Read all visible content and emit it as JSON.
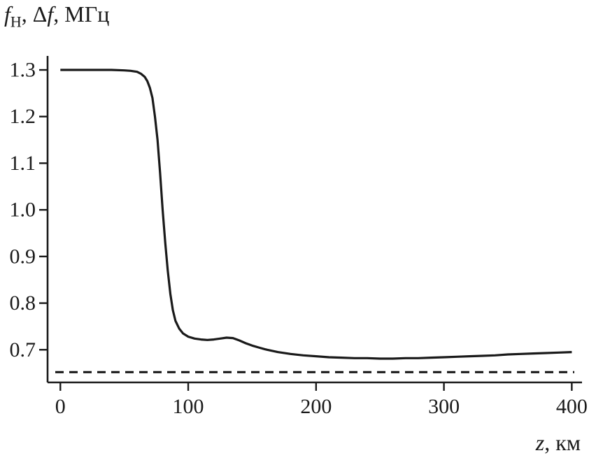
{
  "title": {
    "part1_italic": "f",
    "part2_sub": "Н",
    "part3": ", Δ",
    "part4_italic": "f",
    "part5": ", МГц"
  },
  "xlabel": {
    "part1_italic": "z",
    "part2": ", км"
  },
  "colors": {
    "line": "#1a1a1a",
    "background": "#ffffff"
  },
  "chart_data": {
    "type": "line",
    "title": "fН, Δf, МГц vs z, км",
    "xlabel": "z, км",
    "ylabel": "fН, Δf, МГц",
    "xlim": [
      -10,
      408
    ],
    "ylim": [
      0.63,
      1.33
    ],
    "x_ticks": [
      0,
      100,
      200,
      300,
      400
    ],
    "y_ticks": [
      0.7,
      0.8,
      0.9,
      1.0,
      1.1,
      1.2,
      1.3
    ],
    "grid": false,
    "legend": "none",
    "series": [
      {
        "name": "f-solid-curve",
        "style": "solid",
        "color": "#1a1a1a",
        "points": [
          [
            0,
            1.3
          ],
          [
            10,
            1.3
          ],
          [
            20,
            1.3
          ],
          [
            30,
            1.3
          ],
          [
            40,
            1.3
          ],
          [
            50,
            1.299
          ],
          [
            55,
            1.298
          ],
          [
            60,
            1.296
          ],
          [
            63,
            1.292
          ],
          [
            66,
            1.285
          ],
          [
            68,
            1.276
          ],
          [
            70,
            1.262
          ],
          [
            72,
            1.24
          ],
          [
            74,
            1.2
          ],
          [
            76,
            1.15
          ],
          [
            78,
            1.08
          ],
          [
            80,
            1.0
          ],
          [
            82,
            0.93
          ],
          [
            84,
            0.87
          ],
          [
            86,
            0.82
          ],
          [
            88,
            0.785
          ],
          [
            90,
            0.762
          ],
          [
            93,
            0.745
          ],
          [
            96,
            0.735
          ],
          [
            100,
            0.728
          ],
          [
            105,
            0.724
          ],
          [
            110,
            0.722
          ],
          [
            115,
            0.721
          ],
          [
            120,
            0.722
          ],
          [
            125,
            0.724
          ],
          [
            130,
            0.726
          ],
          [
            135,
            0.725
          ],
          [
            140,
            0.72
          ],
          [
            145,
            0.714
          ],
          [
            150,
            0.709
          ],
          [
            155,
            0.705
          ],
          [
            160,
            0.701
          ],
          [
            170,
            0.695
          ],
          [
            180,
            0.691
          ],
          [
            190,
            0.688
          ],
          [
            200,
            0.686
          ],
          [
            210,
            0.684
          ],
          [
            220,
            0.683
          ],
          [
            230,
            0.682
          ],
          [
            240,
            0.682
          ],
          [
            250,
            0.681
          ],
          [
            260,
            0.681
          ],
          [
            270,
            0.682
          ],
          [
            280,
            0.682
          ],
          [
            290,
            0.683
          ],
          [
            300,
            0.684
          ],
          [
            310,
            0.685
          ],
          [
            320,
            0.686
          ],
          [
            330,
            0.687
          ],
          [
            340,
            0.688
          ],
          [
            350,
            0.69
          ],
          [
            360,
            0.691
          ],
          [
            370,
            0.692
          ],
          [
            380,
            0.693
          ],
          [
            390,
            0.694
          ],
          [
            400,
            0.695
          ]
        ]
      },
      {
        "name": "dashed-reference-level",
        "style": "dashed",
        "color": "#1a1a1a",
        "points": [
          [
            -4,
            0.652
          ],
          [
            402,
            0.652
          ]
        ]
      }
    ]
  }
}
